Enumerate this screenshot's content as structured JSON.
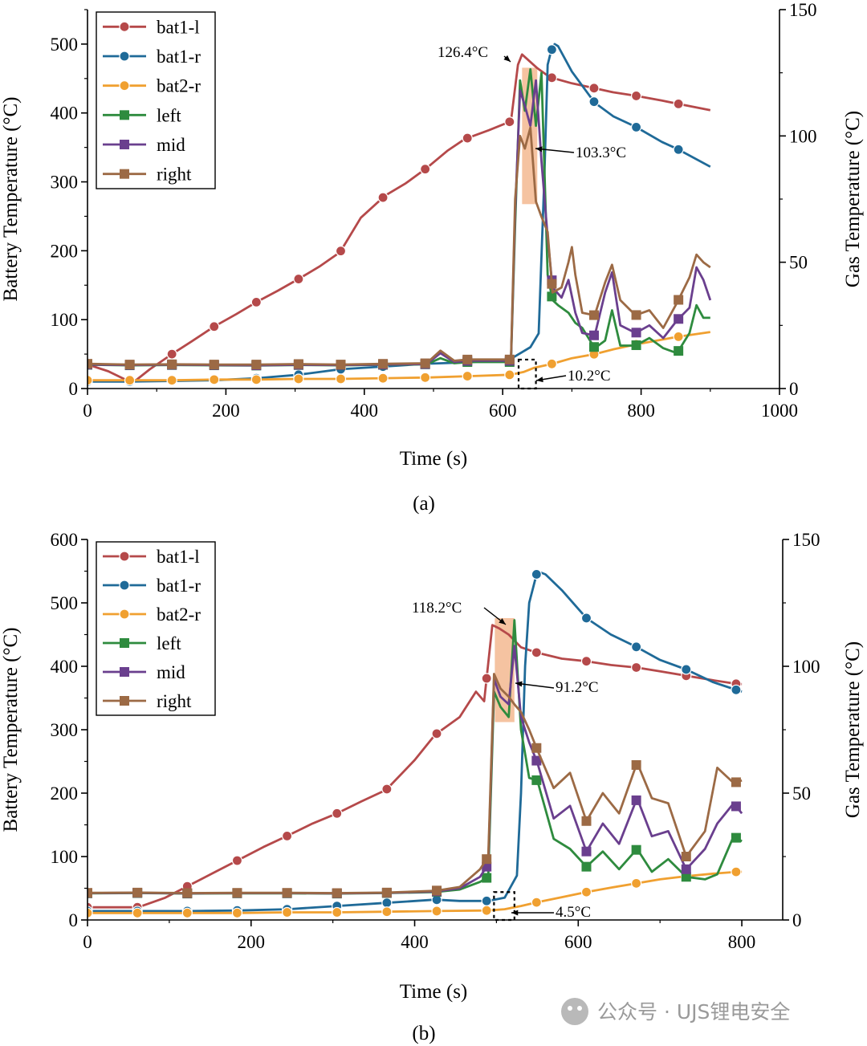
{
  "colors": {
    "bat1_l": "#b5494a",
    "bat1_r": "#1f6a98",
    "bat2_r": "#f0a030",
    "left": "#2e8b3e",
    "mid": "#6a3f8e",
    "right": "#9c6a45",
    "highlight": "#f3b990"
  },
  "legend_labels": [
    "bat1-l",
    "bat1-r",
    "bat2-r",
    "left",
    "mid",
    "right"
  ],
  "watermark": "公众号 · UJS锂电安全",
  "chart_data": [
    {
      "type": "line",
      "caption": "(a)",
      "xlabel": "Time (s)",
      "ylabel": "Battery Temperature (°C)",
      "y2label": "Gas Temperature (°C)",
      "xlim": [
        0,
        1000
      ],
      "ylim": [
        0,
        550
      ],
      "y2lim": [
        0,
        150
      ],
      "xticks": [
        "0",
        "200",
        "400",
        "600",
        "800",
        "1000"
      ],
      "yticks": [
        "0",
        "100",
        "200",
        "300",
        "400",
        "500"
      ],
      "y2ticks": [
        "0",
        "50",
        "100",
        "150"
      ],
      "annotations": [
        "126.4°C",
        "103.3°C",
        "10.2°C"
      ],
      "series": [
        {
          "name": "bat1-l",
          "axis": "left",
          "x": [
            0,
            30,
            65,
            90,
            122,
            150,
            183,
            215,
            245,
            275,
            305,
            335,
            365,
            395,
            430,
            460,
            490,
            520,
            545,
            580,
            612,
            622,
            628,
            650,
            668,
            700,
            732,
            760,
            792,
            830,
            850,
            900
          ],
          "y": [
            35,
            25,
            8,
            28,
            50,
            68,
            90,
            108,
            126,
            142,
            159,
            177,
            198,
            248,
            280,
            298,
            320,
            345,
            362,
            375,
            388,
            470,
            485,
            465,
            452,
            443,
            436,
            430,
            425,
            418,
            414,
            404
          ]
        },
        {
          "name": "bat1-r",
          "axis": "left",
          "x": [
            0,
            60,
            120,
            183,
            245,
            305,
            365,
            430,
            490,
            550,
            610,
            620,
            640,
            652,
            660,
            665,
            670,
            675,
            680,
            700,
            733,
            760,
            792,
            830,
            852,
            900
          ],
          "y": [
            10,
            10,
            11,
            12,
            15,
            20,
            28,
            32,
            36,
            38,
            42,
            48,
            60,
            80,
            300,
            470,
            490,
            500,
            497,
            460,
            415,
            395,
            380,
            358,
            348,
            322
          ]
        },
        {
          "name": "bat2-r",
          "axis": "left",
          "x": [
            0,
            60,
            122,
            183,
            245,
            305,
            365,
            430,
            490,
            550,
            612,
            630,
            645,
            672,
            700,
            733,
            760,
            792,
            852,
            900
          ],
          "y": [
            12,
            12,
            12,
            13,
            13,
            14,
            14,
            15,
            16,
            18,
            20,
            24,
            30,
            36,
            44,
            50,
            57,
            64,
            75,
            82
          ]
        },
        {
          "name": "left",
          "axis": "right",
          "x": [
            0,
            60,
            122,
            183,
            245,
            305,
            365,
            430,
            490,
            510,
            530,
            550,
            612,
            618,
            625,
            632,
            640,
            648,
            656,
            665,
            672,
            680,
            695,
            705,
            715,
            733,
            748,
            758,
            770,
            792,
            812,
            832,
            852,
            870,
            880,
            890,
            900
          ],
          "y": [
            9.4,
            9.2,
            9.3,
            9.2,
            9.1,
            9.3,
            9.2,
            9.4,
            9.6,
            12,
            10,
            10.5,
            10.5,
            65,
            122,
            110,
            126.4,
            104,
            125,
            45,
            35,
            33,
            30,
            26,
            24,
            16,
            19,
            31,
            17,
            17,
            20,
            16,
            14,
            22,
            33,
            28,
            28
          ]
        },
        {
          "name": "mid",
          "axis": "right",
          "x": [
            0,
            60,
            122,
            183,
            245,
            305,
            365,
            430,
            490,
            510,
            530,
            550,
            612,
            618,
            625,
            632,
            640,
            648,
            656,
            665,
            672,
            685,
            695,
            705,
            715,
            733,
            748,
            758,
            770,
            792,
            812,
            832,
            852,
            870,
            880,
            890,
            900
          ],
          "y": [
            9.5,
            9.3,
            9.4,
            9.3,
            9.2,
            9.4,
            9.3,
            9.5,
            9.7,
            14,
            10.5,
            11,
            11,
            70,
            118,
            112,
            104,
            122,
            90,
            60,
            40,
            36,
            43,
            30,
            22,
            21,
            38,
            46,
            25,
            22,
            25,
            20,
            27,
            32,
            48,
            43,
            35
          ]
        },
        {
          "name": "right",
          "axis": "right",
          "x": [
            0,
            60,
            122,
            183,
            245,
            305,
            365,
            430,
            490,
            510,
            530,
            550,
            612,
            618,
            625,
            632,
            640,
            648,
            656,
            665,
            672,
            685,
            695,
            700,
            705,
            715,
            733,
            748,
            758,
            770,
            792,
            812,
            832,
            852,
            870,
            880,
            890,
            900
          ],
          "y": [
            9.8,
            9.5,
            9.6,
            9.5,
            9.5,
            9.7,
            9.5,
            9.8,
            10,
            15,
            11,
            11.5,
            11.5,
            75,
            100,
            95,
            103.3,
            74,
            68,
            62,
            38,
            40,
            50,
            56,
            45,
            30,
            29,
            42,
            49,
            35,
            29,
            31,
            24,
            34,
            44,
            53,
            50,
            48
          ]
        }
      ]
    },
    {
      "type": "line",
      "caption": "(b)",
      "xlabel": "Time (s)",
      "ylabel": "Battery Temperature (°C)",
      "y2label": "Gas Temperature (°C)",
      "xlim": [
        0,
        850
      ],
      "ylim": [
        0,
        600
      ],
      "y2lim": [
        0,
        150
      ],
      "xticks": [
        "0",
        "200",
        "400",
        "600",
        "800"
      ],
      "yticks": [
        "0",
        "100",
        "200",
        "300",
        "400",
        "500",
        "600"
      ],
      "y2ticks": [
        "0",
        "50",
        "100",
        "150"
      ],
      "annotations": [
        "118.2°C",
        "91.2°C",
        "4.5°C"
      ],
      "series": [
        {
          "name": "bat1-l",
          "axis": "left",
          "x": [
            0,
            62,
            95,
            125,
            155,
            185,
            215,
            245,
            275,
            305,
            335,
            365,
            400,
            425,
            455,
            475,
            485,
            495,
            503,
            515,
            530,
            548,
            580,
            610,
            640,
            672,
            700,
            732,
            765,
            795,
            800
          ],
          "y": [
            20,
            20,
            35,
            55,
            75,
            95,
            115,
            133,
            152,
            168,
            187,
            205,
            252,
            292,
            320,
            360,
            345,
            465,
            460,
            450,
            430,
            422,
            412,
            408,
            402,
            398,
            392,
            385,
            378,
            372,
            372
          ]
        },
        {
          "name": "bat1-r",
          "axis": "left",
          "x": [
            0,
            62,
            125,
            185,
            245,
            305,
            365,
            425,
            455,
            490,
            510,
            525,
            530,
            535,
            540,
            550,
            560,
            580,
            610,
            640,
            672,
            700,
            732,
            765,
            795,
            800
          ],
          "y": [
            14,
            14,
            14,
            15,
            17,
            22,
            27,
            32,
            30,
            30,
            35,
            70,
            200,
            400,
            500,
            550,
            545,
            520,
            476,
            450,
            430,
            410,
            395,
            375,
            362,
            360
          ]
        },
        {
          "name": "bat2-r",
          "axis": "left",
          "x": [
            0,
            62,
            125,
            185,
            245,
            305,
            365,
            425,
            490,
            510,
            530,
            550,
            580,
            610,
            640,
            672,
            700,
            732,
            765,
            795,
            800
          ],
          "y": [
            11,
            11,
            11,
            11,
            12,
            12,
            13,
            14,
            15,
            17,
            22,
            28,
            36,
            44,
            51,
            58,
            64,
            69,
            73,
            76,
            76
          ]
        },
        {
          "name": "left",
          "axis": "right",
          "x": [
            0,
            62,
            125,
            185,
            245,
            305,
            365,
            425,
            455,
            480,
            490,
            497,
            505,
            515,
            522,
            530,
            540,
            550,
            570,
            590,
            610,
            630,
            650,
            672,
            690,
            710,
            732,
            755,
            770,
            790,
            800
          ],
          "y": [
            10.5,
            10.6,
            10.4,
            10.5,
            10.5,
            10.4,
            10.6,
            11,
            12,
            15,
            17,
            90,
            84,
            80,
            118.2,
            75,
            56,
            55,
            32,
            28,
            21,
            27,
            20,
            28,
            19,
            24,
            17,
            16,
            18,
            33,
            31
          ]
        },
        {
          "name": "mid",
          "axis": "right",
          "x": [
            0,
            62,
            125,
            185,
            245,
            305,
            365,
            425,
            455,
            480,
            490,
            497,
            505,
            515,
            522,
            530,
            540,
            550,
            570,
            590,
            610,
            630,
            650,
            672,
            690,
            710,
            732,
            755,
            770,
            790,
            800
          ],
          "y": [
            10.6,
            10.7,
            10.5,
            10.6,
            10.6,
            10.5,
            10.7,
            11.2,
            12.5,
            17,
            22,
            95,
            88,
            85,
            108,
            80,
            70,
            62,
            40,
            45,
            27,
            38,
            30,
            48,
            33,
            35,
            20,
            28,
            38,
            46,
            42
          ]
        },
        {
          "name": "right",
          "axis": "right",
          "x": [
            0,
            62,
            125,
            185,
            245,
            305,
            365,
            425,
            455,
            480,
            490,
            497,
            505,
            515,
            522,
            530,
            540,
            550,
            570,
            590,
            610,
            630,
            650,
            672,
            690,
            710,
            732,
            755,
            770,
            790,
            800
          ],
          "y": [
            10.7,
            10.8,
            10.6,
            10.7,
            10.7,
            10.6,
            10.8,
            11.5,
            13,
            20,
            25,
            97,
            91.2,
            88,
            85,
            82,
            75,
            67,
            52,
            58,
            39,
            50,
            42,
            62,
            48,
            46,
            25,
            35,
            60,
            54,
            55
          ]
        }
      ]
    }
  ]
}
